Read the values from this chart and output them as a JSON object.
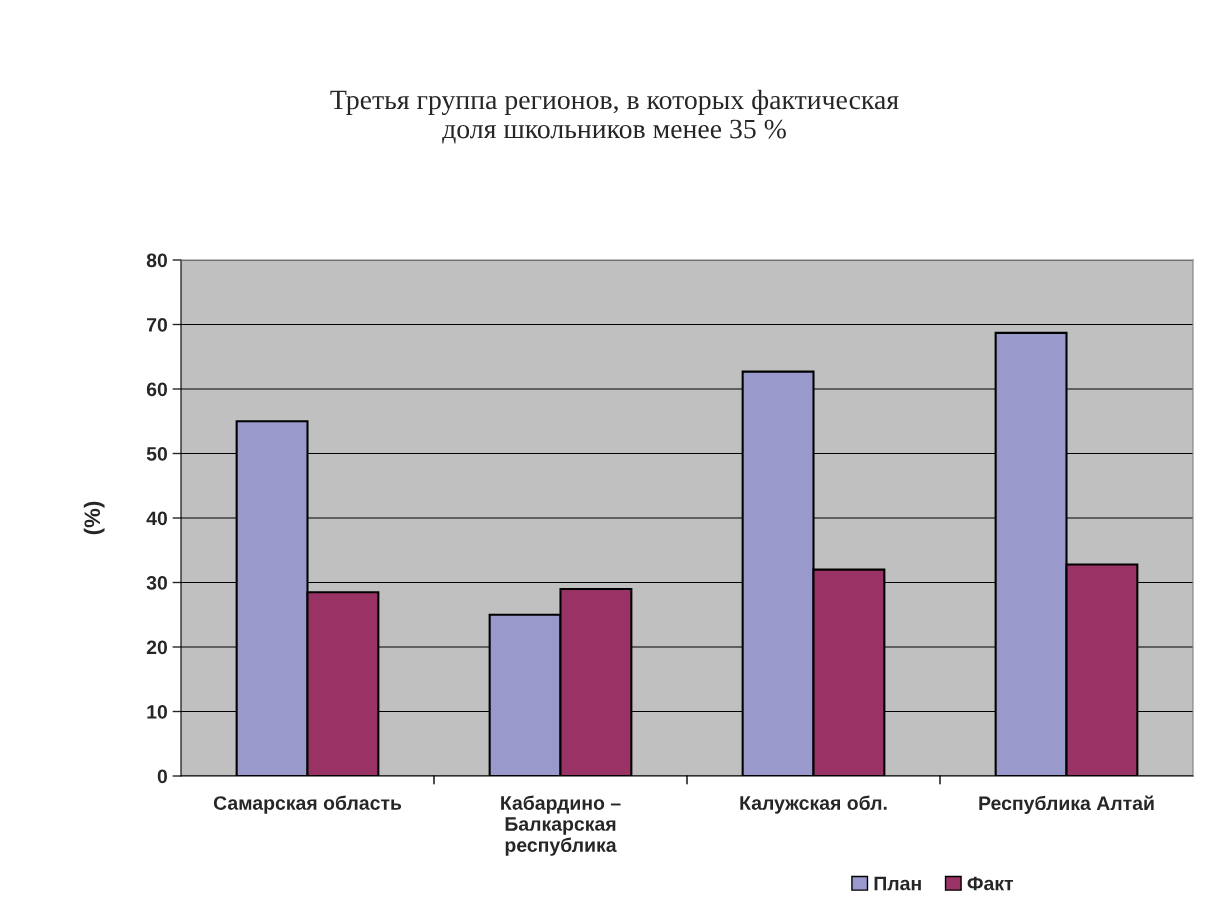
{
  "chart_data": {
    "type": "bar",
    "title": "Третья группа регионов, в которых фактическая\nдоля школьников менее 35 %",
    "ylabel": "(%)",
    "categories": [
      "Самарская область",
      "Кабардино –\nБалкарская\nреспублика",
      "Калужская обл.",
      "Республика Алтай"
    ],
    "series": [
      {
        "name": "План",
        "color": "#9999cc",
        "values": [
          55,
          25,
          62.7,
          68.7
        ]
      },
      {
        "name": "Факт",
        "color": "#993366",
        "values": [
          28.5,
          29,
          32,
          32.8
        ]
      }
    ],
    "ylim": [
      0,
      80
    ],
    "yticks": [
      0,
      10,
      20,
      30,
      40,
      50,
      60,
      70,
      80
    ],
    "grid": "y",
    "legend": "bottom right"
  }
}
